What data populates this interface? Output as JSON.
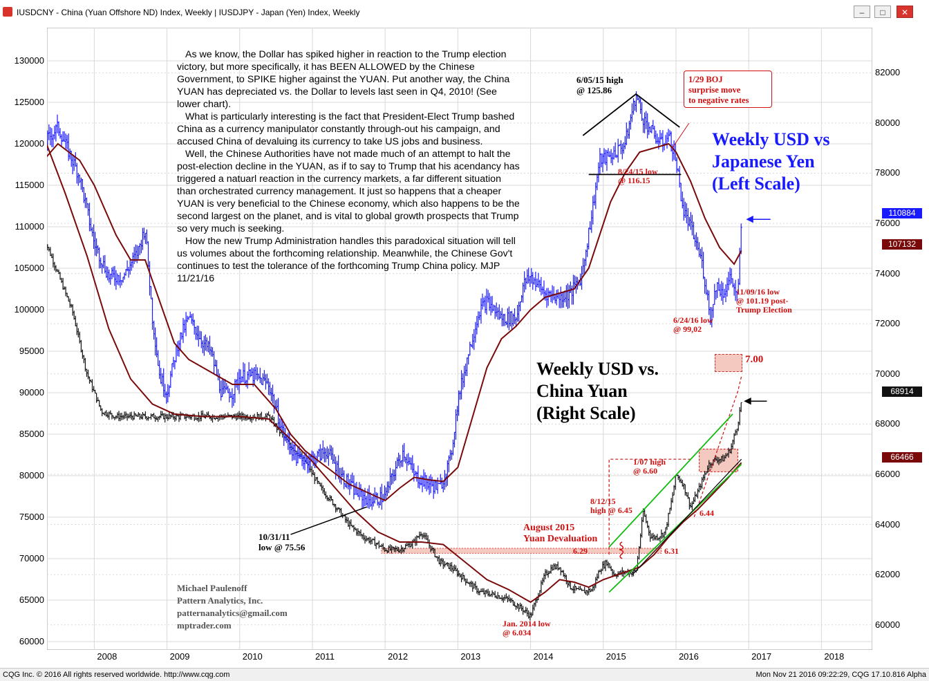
{
  "window": {
    "title": "IUSDCNY - China (Yuan Offshore ND) Index, Weekly   |   IUSDJPY - Japan (Yen) Index, Weekly",
    "buttons": [
      "minimize",
      "maximize",
      "close"
    ]
  },
  "commentary": [
    "As we know, the Dollar has spiked higher in reaction to the Trump election victory, but more specifically, it has BEEN ALLOWED by the Chinese Government, to SPIKE higher against the YUAN. Put another way, the China YUAN has depreciated vs. the Dollar to levels last seen in Q4, 2010!  (See lower chart).",
    "What is particularly interesting is the fact that President-Elect Trump bashed China as a currency manipulator constantly through-out his campaign, and accused China of devaluing its currency to take US jobs and business.",
    "Well, the Chinese Authorities have not made much of an attempt to halt the post-election decline in the YUAN, as if to say to Trump that his acendancy has triggered a natuarl reaction in the currency markets, a far different situation than orchestrated currency management. It just so happens that a cheaper YUAN is very beneficial to the Chinese economy, which also happens to be the second largest on the planet, and is vital to global growth prospects that Trump so very much is seeking.",
    "How the new Trump Administration handles this paradoxical situation will tell us volumes about the forthcoming relationship. Meanwhile, the Chinese Gov't continues to test the tolerance of the forthcoming Trump China policy. MJP 11/21/16"
  ],
  "credit": [
    "Michael Paulenoff",
    "Pattern Analytics, Inc.",
    "patternanalytics@gmail.com",
    "mptrader.com"
  ],
  "footer": {
    "left": "CQG Inc. © 2016 All rights reserved worldwide. http://www.cqg.com",
    "right": "Mon Nov 21 2016 09:22:29, CQG 17.10.816 Alpha"
  },
  "colors": {
    "yen_bars": "#1a1aff",
    "yuan_bars": "#111111",
    "moving_average": "#7a0a0a",
    "annotation_red": "#d01010",
    "title_blue": "#1a1aff",
    "trend_green": "#11bb11",
    "highlight_box": "#f4c9c0",
    "grid": "#d8d8d8"
  },
  "chart_data": {
    "type": "bar",
    "x_ticks": [
      "2008",
      "2009",
      "2010",
      "2011",
      "2012",
      "2013",
      "2014",
      "2015",
      "2016",
      "2017",
      "2018"
    ],
    "left_axis": {
      "ticks": [
        130000,
        125000,
        120000,
        115000,
        110000,
        105000,
        100000,
        95000,
        90000,
        85000,
        80000,
        75000,
        70000,
        65000,
        60000
      ],
      "ylim": [
        59000,
        134000
      ]
    },
    "right_axis": {
      "ticks": [
        82000,
        80000,
        78000,
        76000,
        74000,
        72000,
        70000,
        68000,
        66000,
        64000,
        62000,
        60000
      ],
      "ylim": [
        59000,
        83800
      ]
    },
    "series": [
      {
        "name": "Weekly USD vs Japanese Yen (Left Scale)",
        "scale": "left",
        "points": [
          [
            2007.3,
            120000
          ],
          [
            2007.5,
            122000
          ],
          [
            2007.8,
            116000
          ],
          [
            2008.0,
            108000
          ],
          [
            2008.2,
            104000
          ],
          [
            2008.4,
            104000
          ],
          [
            2008.6,
            107000
          ],
          [
            2008.7,
            110000
          ],
          [
            2008.8,
            99000
          ],
          [
            2008.9,
            92000
          ],
          [
            2009.0,
            90000
          ],
          [
            2009.15,
            96000
          ],
          [
            2009.3,
            99000
          ],
          [
            2009.5,
            96000
          ],
          [
            2009.6,
            95000
          ],
          [
            2009.75,
            90000
          ],
          [
            2009.9,
            90000
          ],
          [
            2010.0,
            92000
          ],
          [
            2010.2,
            92000
          ],
          [
            2010.4,
            91000
          ],
          [
            2010.6,
            85000
          ],
          [
            2010.8,
            82000
          ],
          [
            2011.0,
            82000
          ],
          [
            2011.2,
            83000
          ],
          [
            2011.4,
            80000
          ],
          [
            2011.6,
            78000
          ],
          [
            2011.8,
            77000
          ],
          [
            2012.0,
            77500
          ],
          [
            2012.1,
            80000
          ],
          [
            2012.25,
            83000
          ],
          [
            2012.4,
            80000
          ],
          [
            2012.6,
            79000
          ],
          [
            2012.75,
            78500
          ],
          [
            2012.9,
            82000
          ],
          [
            2013.0,
            89000
          ],
          [
            2013.15,
            95000
          ],
          [
            2013.3,
            100000
          ],
          [
            2013.4,
            101000
          ],
          [
            2013.6,
            99000
          ],
          [
            2013.8,
            99000
          ],
          [
            2013.9,
            103000
          ],
          [
            2014.0,
            104000
          ],
          [
            2014.2,
            102000
          ],
          [
            2014.4,
            101500
          ],
          [
            2014.55,
            102000
          ],
          [
            2014.7,
            104000
          ],
          [
            2014.85,
            112000
          ],
          [
            2014.95,
            118000
          ],
          [
            2015.1,
            118500
          ],
          [
            2015.3,
            120000
          ],
          [
            2015.4,
            124000
          ],
          [
            2015.45,
            125860
          ],
          [
            2015.55,
            123000
          ],
          [
            2015.7,
            121000
          ],
          [
            2015.8,
            120000
          ],
          [
            2015.9,
            121000
          ],
          [
            2016.0,
            118000
          ],
          [
            2016.1,
            112000
          ],
          [
            2016.2,
            110000
          ],
          [
            2016.35,
            106000
          ],
          [
            2016.48,
            99020
          ],
          [
            2016.55,
            103000
          ],
          [
            2016.65,
            102000
          ],
          [
            2016.75,
            104000
          ],
          [
            2016.85,
            101190
          ],
          [
            2016.9,
            110884
          ]
        ]
      },
      {
        "name": "Weekly USD vs. China Yuan (Right Scale)",
        "scale": "right",
        "points": [
          [
            2007.3,
            75500
          ],
          [
            2007.5,
            74000
          ],
          [
            2007.7,
            72500
          ],
          [
            2007.9,
            70000
          ],
          [
            2008.1,
            68500
          ],
          [
            2008.3,
            68300
          ],
          [
            2008.5,
            68300
          ],
          [
            2008.7,
            68300
          ],
          [
            2009.0,
            68300
          ],
          [
            2009.5,
            68300
          ],
          [
            2010.0,
            68300
          ],
          [
            2010.4,
            68300
          ],
          [
            2010.6,
            67500
          ],
          [
            2010.9,
            66500
          ],
          [
            2011.1,
            65500
          ],
          [
            2011.3,
            64800
          ],
          [
            2011.5,
            64000
          ],
          [
            2011.7,
            63500
          ],
          [
            2011.9,
            63200
          ],
          [
            2012.0,
            63000
          ],
          [
            2012.2,
            63000
          ],
          [
            2012.4,
            63300
          ],
          [
            2012.5,
            63700
          ],
          [
            2012.6,
            63200
          ],
          [
            2012.75,
            62500
          ],
          [
            2012.9,
            62300
          ],
          [
            2013.1,
            61800
          ],
          [
            2013.3,
            61300
          ],
          [
            2013.5,
            61200
          ],
          [
            2013.7,
            61000
          ],
          [
            2013.9,
            60600
          ],
          [
            2014.0,
            60340
          ],
          [
            2014.1,
            61200
          ],
          [
            2014.2,
            62000
          ],
          [
            2014.3,
            62300
          ],
          [
            2014.4,
            62300
          ],
          [
            2014.55,
            61500
          ],
          [
            2014.7,
            61300
          ],
          [
            2014.85,
            61400
          ],
          [
            2014.95,
            62200
          ],
          [
            2015.05,
            62500
          ],
          [
            2015.15,
            62000
          ],
          [
            2015.3,
            62100
          ],
          [
            2015.45,
            62100
          ],
          [
            2015.55,
            64500
          ],
          [
            2015.65,
            63500
          ],
          [
            2015.75,
            63500
          ],
          [
            2015.85,
            63700
          ],
          [
            2015.95,
            65100
          ],
          [
            2016.0,
            66000
          ],
          [
            2016.1,
            65600
          ],
          [
            2016.2,
            64700
          ],
          [
            2016.3,
            65300
          ],
          [
            2016.45,
            66400
          ],
          [
            2016.55,
            66600
          ],
          [
            2016.65,
            66600
          ],
          [
            2016.75,
            67000
          ],
          [
            2016.85,
            68000
          ],
          [
            2016.9,
            68914
          ]
        ]
      },
      {
        "name": "Yen moving average",
        "scale": "left",
        "points": [
          [
            2007.3,
            118000
          ],
          [
            2007.5,
            120000
          ],
          [
            2007.8,
            118000
          ],
          [
            2008.0,
            115000
          ],
          [
            2008.3,
            109000
          ],
          [
            2008.5,
            106000
          ],
          [
            2008.7,
            106000
          ],
          [
            2008.9,
            101000
          ],
          [
            2009.1,
            96000
          ],
          [
            2009.3,
            94000
          ],
          [
            2009.6,
            92500
          ],
          [
            2009.9,
            91000
          ],
          [
            2010.2,
            91000
          ],
          [
            2010.5,
            88000
          ],
          [
            2010.7,
            85000
          ],
          [
            2010.9,
            83000
          ],
          [
            2011.2,
            81000
          ],
          [
            2011.5,
            79000
          ],
          [
            2011.8,
            77800
          ],
          [
            2012.0,
            77000
          ],
          [
            2012.2,
            78500
          ],
          [
            2012.4,
            79800
          ],
          [
            2012.6,
            79500
          ],
          [
            2012.8,
            79300
          ],
          [
            2013.0,
            81000
          ],
          [
            2013.2,
            87000
          ],
          [
            2013.4,
            93000
          ],
          [
            2013.6,
            96500
          ],
          [
            2013.8,
            98000
          ],
          [
            2014.0,
            100000
          ],
          [
            2014.2,
            101500
          ],
          [
            2014.4,
            102000
          ],
          [
            2014.6,
            102500
          ],
          [
            2014.8,
            105000
          ],
          [
            2014.95,
            109000
          ],
          [
            2015.1,
            113000
          ],
          [
            2015.3,
            116500
          ],
          [
            2015.5,
            119000
          ],
          [
            2015.7,
            119500
          ],
          [
            2015.9,
            120000
          ],
          [
            2016.0,
            119000
          ],
          [
            2016.2,
            115500
          ],
          [
            2016.4,
            111000
          ],
          [
            2016.6,
            107500
          ],
          [
            2016.8,
            105500
          ],
          [
            2016.9,
            107132
          ]
        ]
      },
      {
        "name": "Yuan moving average",
        "scale": "right",
        "points": [
          [
            2007.3,
            79500
          ],
          [
            2007.6,
            77200
          ],
          [
            2007.9,
            74700
          ],
          [
            2008.2,
            71800
          ],
          [
            2008.5,
            69800
          ],
          [
            2008.8,
            68800
          ],
          [
            2009.1,
            68400
          ],
          [
            2009.5,
            68300
          ],
          [
            2010.0,
            68300
          ],
          [
            2010.4,
            68200
          ],
          [
            2010.7,
            67400
          ],
          [
            2011.0,
            66500
          ],
          [
            2011.3,
            65500
          ],
          [
            2011.6,
            64500
          ],
          [
            2011.9,
            63700
          ],
          [
            2012.2,
            63300
          ],
          [
            2012.5,
            63300
          ],
          [
            2012.8,
            63200
          ],
          [
            2013.1,
            62500
          ],
          [
            2013.4,
            61800
          ],
          [
            2013.7,
            61400
          ],
          [
            2014.0,
            60900
          ],
          [
            2014.2,
            61300
          ],
          [
            2014.4,
            61800
          ],
          [
            2014.6,
            61700
          ],
          [
            2014.8,
            61500
          ],
          [
            2015.0,
            61800
          ],
          [
            2015.3,
            62100
          ],
          [
            2015.5,
            62300
          ],
          [
            2015.7,
            62800
          ],
          [
            2015.9,
            63500
          ],
          [
            2016.1,
            64100
          ],
          [
            2016.3,
            64600
          ],
          [
            2016.5,
            65200
          ],
          [
            2016.7,
            65800
          ],
          [
            2016.9,
            66466
          ]
        ]
      }
    ],
    "last_values": {
      "yen": "110884",
      "yen_ma": "107132",
      "yuan": "68914",
      "yuan_ma": "66466"
    },
    "chart_titles": {
      "yen": [
        "Weekly USD vs",
        "Japanese Yen",
        "(Left Scale)"
      ],
      "yuan": [
        "Weekly USD vs.",
        "China Yuan",
        "(Right Scale)"
      ]
    },
    "annotations": {
      "yen_high": [
        "6/05/15 high",
        "@ 125.86"
      ],
      "yen_low_824": [
        "8/24/15 low",
        "@ 116.15"
      ],
      "boj": [
        "1/29 BOJ",
        "surprise move",
        "to negative rates"
      ],
      "yen_low_624": [
        "6/24/16 low",
        "@ 99,02"
      ],
      "yen_low_1109": [
        "11/09/16 low",
        "@ 101.19 post-",
        "Trump Election"
      ],
      "yuan_target": "7.00",
      "yuan_low_1031": [
        "10/31/11",
        "low @ 75.56"
      ],
      "yuan_107": [
        "1/07 high",
        "@ 6.60"
      ],
      "yuan_812": [
        "8/12/15",
        "high @ 6.45"
      ],
      "devaluation": [
        "August 2015",
        "Yuan Devaluation"
      ],
      "yuan_629": "6.29",
      "yuan_631": "6.31",
      "yuan_644": "6.44",
      "yuan_jan2014": [
        "Jan. 2014 low",
        "@ 6.034"
      ]
    }
  }
}
